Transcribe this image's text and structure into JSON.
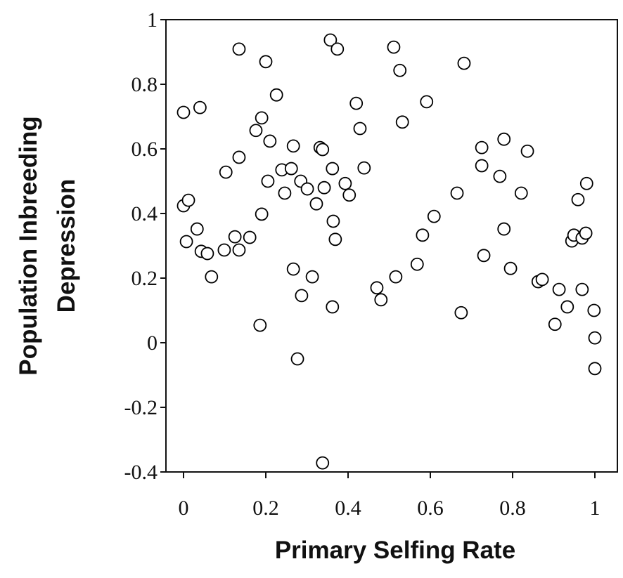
{
  "chart_data": {
    "type": "scatter",
    "title": "",
    "xlabel": "Primary Selfing Rate",
    "ylabel_lines": [
      "Population Inbreeding",
      "Depression"
    ],
    "xlim": [
      0,
      1
    ],
    "ylim": [
      -0.4,
      1
    ],
    "xticks": [
      0,
      0.2,
      0.4,
      0.6,
      0.8,
      1
    ],
    "xtick_labels": [
      "0",
      "0.2",
      "0.4",
      "0.6",
      "0.8",
      "1"
    ],
    "yticks": [
      1,
      0.8,
      0.6,
      0.4,
      0.2,
      0,
      -0.2,
      -0.4
    ],
    "ytick_labels": [
      "1",
      "0.8",
      "0.6",
      "0.4",
      "0.2",
      "0",
      "-0.2",
      "-0.4"
    ],
    "grid": false,
    "legend": "none",
    "marker": "open-circle",
    "marker_color": "#000000",
    "points": [
      [
        0.0,
        0.713
      ],
      [
        0.04,
        0.728
      ],
      [
        0.0,
        0.424
      ],
      [
        0.012,
        0.441
      ],
      [
        0.007,
        0.313
      ],
      [
        0.033,
        0.352
      ],
      [
        0.043,
        0.283
      ],
      [
        0.058,
        0.276
      ],
      [
        0.068,
        0.204
      ],
      [
        0.099,
        0.287
      ],
      [
        0.103,
        0.528
      ],
      [
        0.125,
        0.328
      ],
      [
        0.135,
        0.287
      ],
      [
        0.135,
        0.574
      ],
      [
        0.135,
        0.909
      ],
      [
        0.161,
        0.326
      ],
      [
        0.176,
        0.657
      ],
      [
        0.186,
        0.054
      ],
      [
        0.19,
        0.696
      ],
      [
        0.19,
        0.398
      ],
      [
        0.2,
        0.87
      ],
      [
        0.205,
        0.5
      ],
      [
        0.21,
        0.624
      ],
      [
        0.226,
        0.767
      ],
      [
        0.239,
        0.535
      ],
      [
        0.246,
        0.463
      ],
      [
        0.262,
        0.539
      ],
      [
        0.267,
        0.609
      ],
      [
        0.267,
        0.228
      ],
      [
        0.277,
        -0.05
      ],
      [
        0.285,
        0.5
      ],
      [
        0.287,
        0.146
      ],
      [
        0.301,
        0.476
      ],
      [
        0.313,
        0.204
      ],
      [
        0.323,
        0.43
      ],
      [
        0.332,
        0.604
      ],
      [
        0.338,
        0.598
      ],
      [
        0.342,
        0.48
      ],
      [
        0.338,
        -0.372
      ],
      [
        0.357,
        0.937
      ],
      [
        0.374,
        0.909
      ],
      [
        0.362,
        0.539
      ],
      [
        0.364,
        0.376
      ],
      [
        0.369,
        0.32
      ],
      [
        0.362,
        0.111
      ],
      [
        0.393,
        0.493
      ],
      [
        0.403,
        0.457
      ],
      [
        0.42,
        0.741
      ],
      [
        0.429,
        0.663
      ],
      [
        0.439,
        0.541
      ],
      [
        0.47,
        0.17
      ],
      [
        0.48,
        0.133
      ],
      [
        0.511,
        0.915
      ],
      [
        0.516,
        0.204
      ],
      [
        0.526,
        0.843
      ],
      [
        0.532,
        0.683
      ],
      [
        0.568,
        0.243
      ],
      [
        0.581,
        0.333
      ],
      [
        0.591,
        0.746
      ],
      [
        0.609,
        0.391
      ],
      [
        0.665,
        0.463
      ],
      [
        0.675,
        0.093
      ],
      [
        0.682,
        0.865
      ],
      [
        0.725,
        0.604
      ],
      [
        0.725,
        0.548
      ],
      [
        0.73,
        0.27
      ],
      [
        0.769,
        0.515
      ],
      [
        0.779,
        0.63
      ],
      [
        0.779,
        0.352
      ],
      [
        0.795,
        0.23
      ],
      [
        0.821,
        0.463
      ],
      [
        0.836,
        0.593
      ],
      [
        0.862,
        0.189
      ],
      [
        0.872,
        0.196
      ],
      [
        0.903,
        0.057
      ],
      [
        0.913,
        0.165
      ],
      [
        0.933,
        0.111
      ],
      [
        0.944,
        0.315
      ],
      [
        0.949,
        0.333
      ],
      [
        0.959,
        0.443
      ],
      [
        0.969,
        0.324
      ],
      [
        0.969,
        0.165
      ],
      [
        0.978,
        0.339
      ],
      [
        0.98,
        0.493
      ],
      [
        0.998,
        0.1
      ],
      [
        1.0,
        0.015
      ],
      [
        1.0,
        -0.08
      ]
    ]
  }
}
